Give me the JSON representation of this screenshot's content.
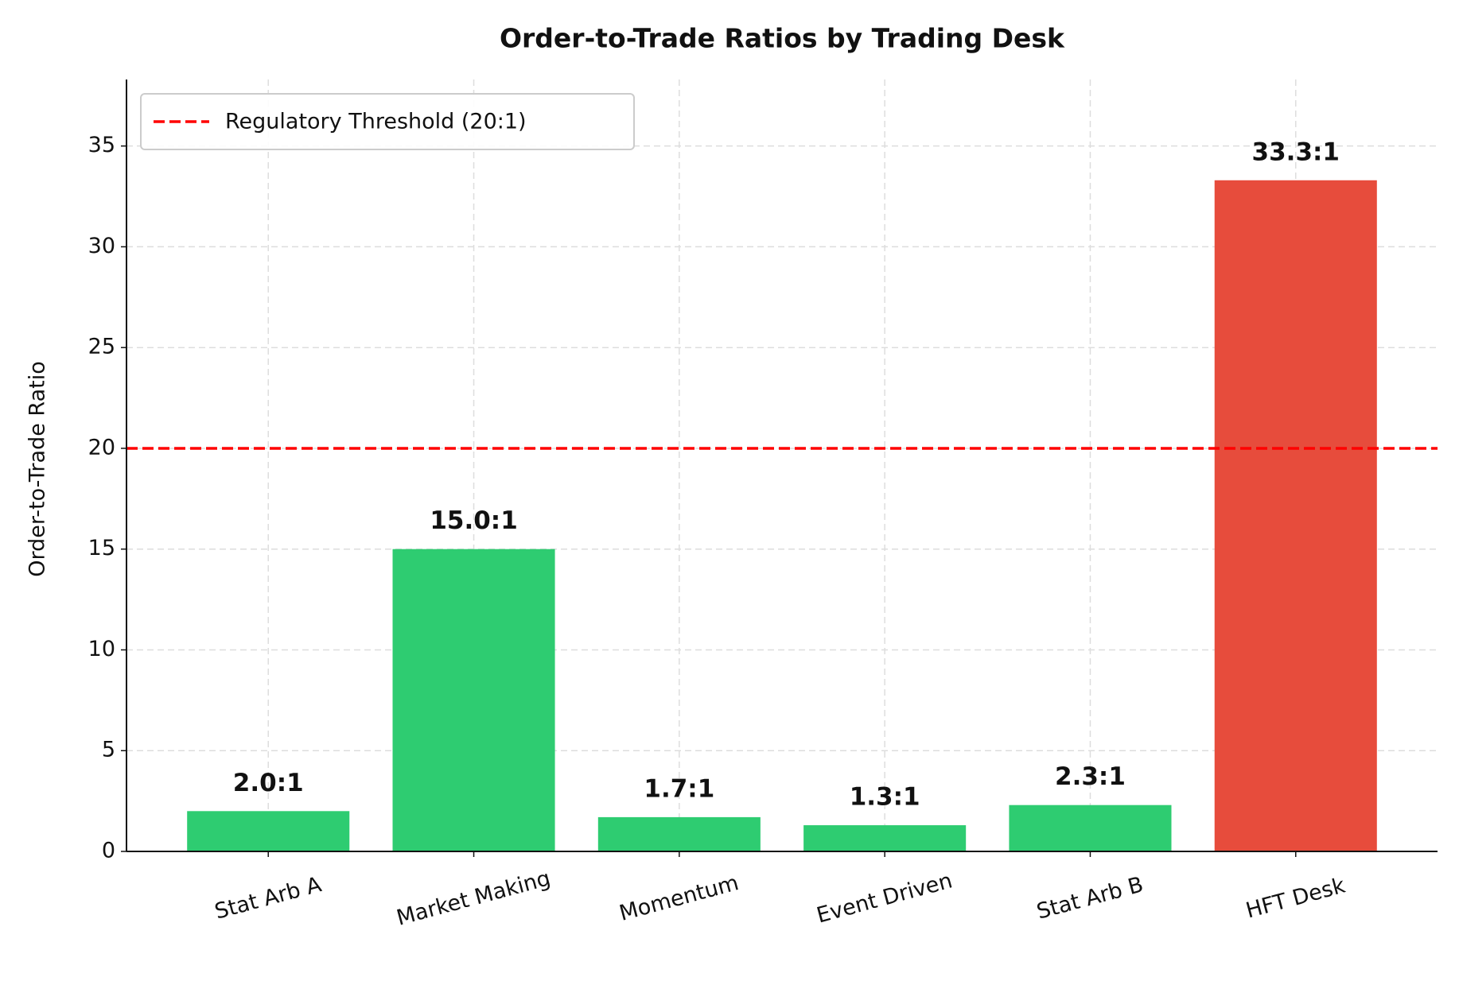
{
  "chart_data": {
    "type": "bar",
    "title": "Order-to-Trade Ratios by Trading Desk",
    "y_label": "Order-to-Trade Ratio",
    "categories": [
      "Stat Arb A",
      "Market Making",
      "Momentum",
      "Event Driven",
      "Stat Arb B",
      "HFT Desk"
    ],
    "values": [
      2.0,
      15.0,
      1.7,
      1.3,
      2.3,
      33.3
    ],
    "value_labels": [
      "2.0:1",
      "15.0:1",
      "1.7:1",
      "1.3:1",
      "2.3:1",
      "33.3:1"
    ],
    "colors": [
      "#2ecc71",
      "#2ecc71",
      "#2ecc71",
      "#2ecc71",
      "#2ecc71",
      "#e74c3c"
    ],
    "threshold": {
      "value": 20,
      "label": "Regulatory Threshold (20:1)",
      "color": "#ff0000"
    },
    "ylim": [
      0,
      38.3
    ],
    "yticks": [
      0,
      5,
      10,
      15,
      20,
      25,
      30,
      35
    ],
    "grid": true,
    "legend": "upper left"
  }
}
